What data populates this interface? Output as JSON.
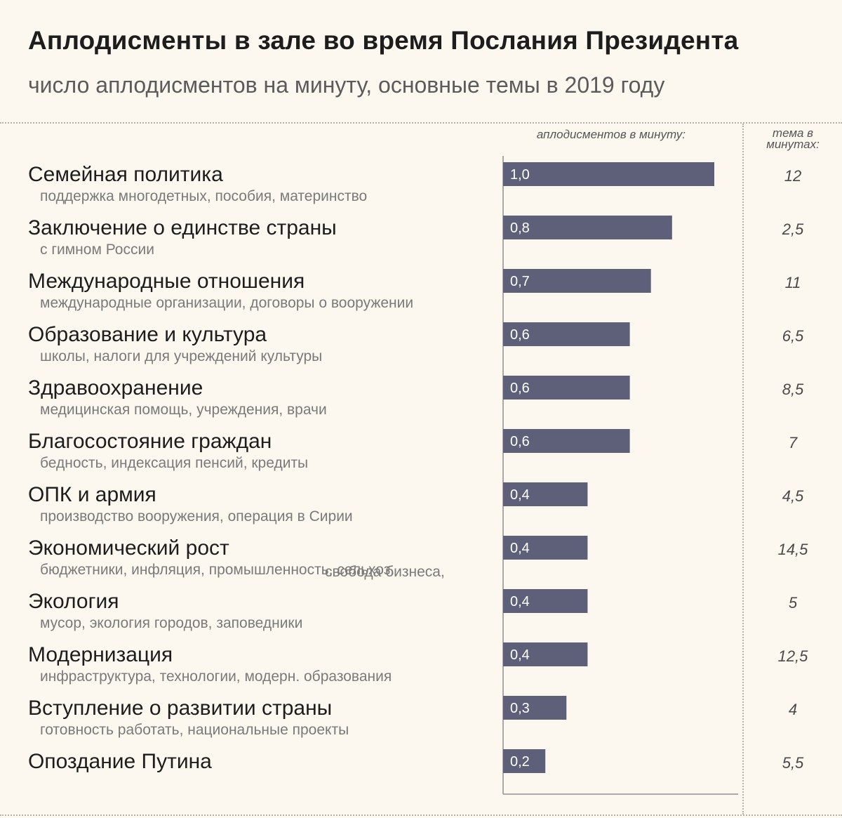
{
  "title": "Аплодисменты в зале во время Послания Президента",
  "subtitle": "число аплодисментов на минуту, основные темы в 2019 году",
  "column_headers": {
    "rate": "аплодисментов в минуту:",
    "minutes": "тема в минутах:"
  },
  "colors": {
    "bar": "#5d6078",
    "background": "#fcf7ef"
  },
  "chart_data": {
    "type": "bar",
    "orientation": "horizontal",
    "title": "Аплодисменты в зале во время Послания Президента",
    "subtitle": "число аплодисментов на минуту, основные темы в 2019 году",
    "xlim": [
      0,
      1.0
    ],
    "grid": false,
    "categories": [
      {
        "label": "Семейная политика",
        "desc": "поддержка многодетных, пособия, материнство",
        "desc_inline": "",
        "value": 1.0,
        "value_label": "1,0",
        "minutes": 12,
        "minutes_label": "12"
      },
      {
        "label": "Заключение о единстве страны",
        "desc": "с гимном России",
        "desc_inline": "",
        "value": 0.8,
        "value_label": "0,8",
        "minutes": 2.5,
        "minutes_label": "2,5"
      },
      {
        "label": "Международные отношения",
        "desc": "международные организации, договоры о вооружении",
        "desc_inline": "",
        "value": 0.7,
        "value_label": "0,7",
        "minutes": 11,
        "minutes_label": "11"
      },
      {
        "label": "Образование и культура",
        "desc": "школы, налоги для учреждений культуры",
        "desc_inline": "",
        "value": 0.6,
        "value_label": "0,6",
        "minutes": 6.5,
        "minutes_label": "6,5"
      },
      {
        "label": "Здравоохранение",
        "desc": "медицинская помощь, учреждения, врачи",
        "desc_inline": "",
        "value": 0.6,
        "value_label": "0,6",
        "minutes": 8.5,
        "minutes_label": "8,5"
      },
      {
        "label": "Благосостояние граждан",
        "desc": "бедность, индексация пенсий, кредиты",
        "desc_inline": "",
        "value": 0.6,
        "value_label": "0,6",
        "minutes": 7,
        "minutes_label": "7"
      },
      {
        "label": "ОПК и армия",
        "desc": "производство вооружения, операция в Сирии",
        "desc_inline": "",
        "value": 0.4,
        "value_label": "0,4",
        "minutes": 4.5,
        "minutes_label": "4,5"
      },
      {
        "label": "Экономический рост",
        "desc": "бюджетники, инфляция, промышленность, сельхоз.",
        "desc_inline": "свобода бизнеса,",
        "value": 0.4,
        "value_label": "0,4",
        "minutes": 14.5,
        "minutes_label": "14,5"
      },
      {
        "label": "Экология",
        "desc": "мусор, экология городов, заповедники",
        "desc_inline": "",
        "value": 0.4,
        "value_label": "0,4",
        "minutes": 5,
        "minutes_label": "5"
      },
      {
        "label": "Модернизация",
        "desc": "инфраструктура, технологии, модерн. образования",
        "desc_inline": "",
        "value": 0.4,
        "value_label": "0,4",
        "minutes": 12.5,
        "minutes_label": "12,5"
      },
      {
        "label": "Вступление о развитии страны",
        "desc": "готовность работать, национальные проекты",
        "desc_inline": "",
        "value": 0.3,
        "value_label": "0,3",
        "minutes": 4,
        "minutes_label": "4"
      },
      {
        "label": "Опоздание Путина",
        "desc": "",
        "desc_inline": "",
        "value": 0.2,
        "value_label": "0,2",
        "minutes": 5.5,
        "minutes_label": "5,5"
      }
    ]
  }
}
